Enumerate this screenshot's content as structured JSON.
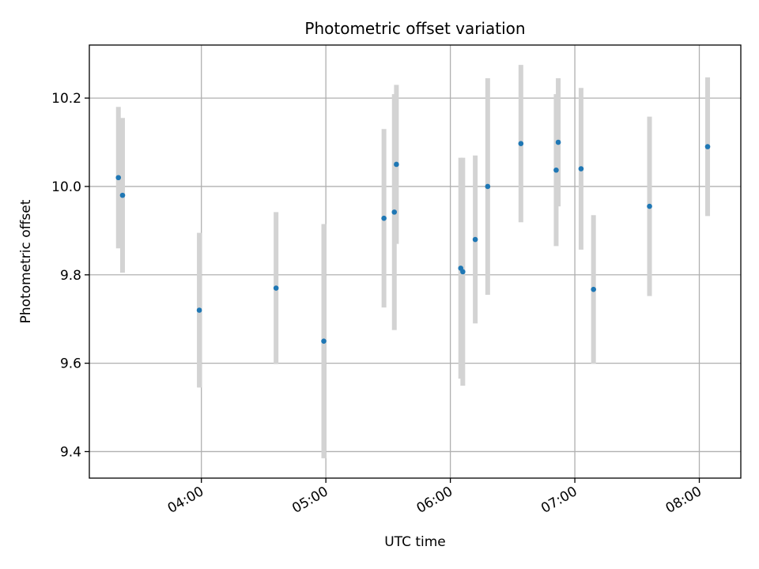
{
  "chart_data": {
    "type": "scatter",
    "title": "Photometric offset variation",
    "xlabel": "UTC time",
    "ylabel": "Photometric offset",
    "x_tick_labels": [
      "04:00",
      "05:00",
      "06:00",
      "07:00",
      "08:00"
    ],
    "x_tick_values": [
      "04:00",
      "05:00",
      "06:00",
      "07:00",
      "08:00"
    ],
    "y_tick_labels": [
      "9.4",
      "9.6",
      "9.8",
      "10.0",
      "10.2"
    ],
    "y_tick_values": [
      9.4,
      9.6,
      9.8,
      10.0,
      10.2
    ],
    "xlim": [
      "03:06",
      "08:20"
    ],
    "ylim": [
      9.34,
      10.32
    ],
    "grid": true,
    "colors": {
      "marker": "#1f77b4",
      "errorbar": "#d3d3d3"
    },
    "points": [
      {
        "time": "03:20",
        "value": 10.02,
        "error": 0.16
      },
      {
        "time": "03:22",
        "value": 9.98,
        "error": 0.175
      },
      {
        "time": "03:59",
        "value": 9.72,
        "error": 0.175
      },
      {
        "time": "04:36",
        "value": 9.77,
        "error": 0.172
      },
      {
        "time": "04:59",
        "value": 9.65,
        "error": 0.265
      },
      {
        "time": "05:28",
        "value": 9.928,
        "error": 0.202
      },
      {
        "time": "05:33",
        "value": 9.942,
        "error": 0.267
      },
      {
        "time": "05:34",
        "value": 10.05,
        "error": 0.18
      },
      {
        "time": "06:05",
        "value": 9.815,
        "error": 0.25
      },
      {
        "time": "06:06",
        "value": 9.807,
        "error": 0.258
      },
      {
        "time": "06:12",
        "value": 9.88,
        "error": 0.19
      },
      {
        "time": "06:18",
        "value": 10.0,
        "error": 0.245
      },
      {
        "time": "06:34",
        "value": 10.097,
        "error": 0.178
      },
      {
        "time": "06:51",
        "value": 10.037,
        "error": 0.172
      },
      {
        "time": "06:52",
        "value": 10.1,
        "error": 0.145
      },
      {
        "time": "07:03",
        "value": 10.04,
        "error": 0.183
      },
      {
        "time": "07:09",
        "value": 9.767,
        "error": 0.168
      },
      {
        "time": "07:36",
        "value": 9.955,
        "error": 0.203
      },
      {
        "time": "08:04",
        "value": 10.09,
        "error": 0.157
      }
    ]
  }
}
